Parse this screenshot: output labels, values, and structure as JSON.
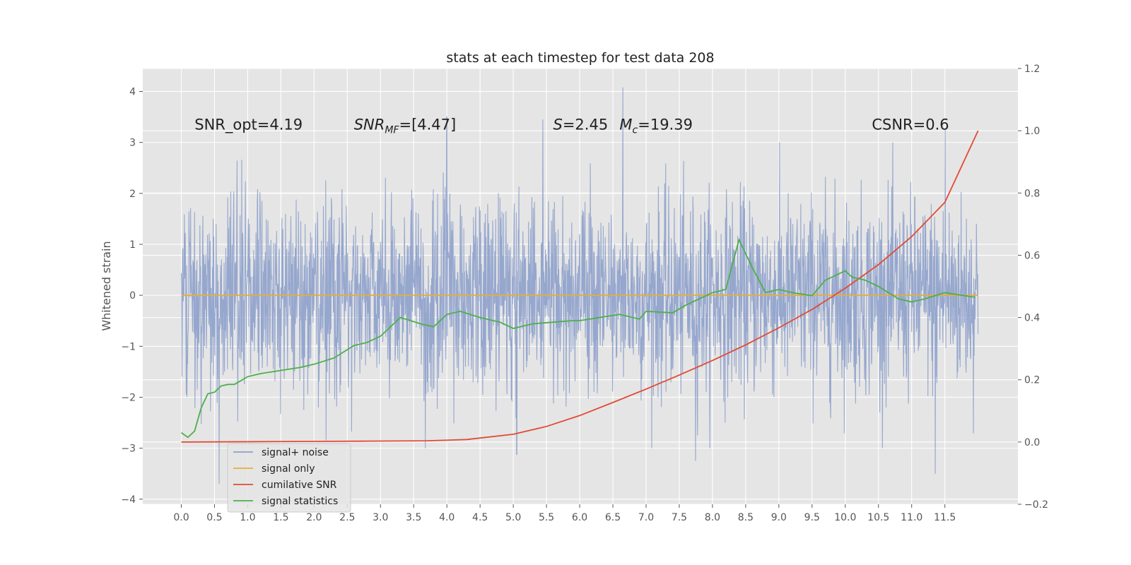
{
  "chart_data": {
    "type": "line",
    "title": "stats at each timestep for test data 208",
    "ylabel": "Whitened strain",
    "xlabel": "",
    "xlim": [
      -0.58,
      12.6
    ],
    "ylim": [
      -4.1,
      4.45
    ],
    "y2lim": [
      -0.2,
      1.2
    ],
    "x_ticks": [
      "0.0",
      "0.5",
      "1.0",
      "1.5",
      "2.0",
      "2.5",
      "3.0",
      "3.5",
      "4.0",
      "4.5",
      "5.0",
      "5.5",
      "6.0",
      "6.5",
      "7.0",
      "7.5",
      "8.0",
      "8.5",
      "9.0",
      "9.5",
      "10.0",
      "10.5",
      "11.0",
      "11.5"
    ],
    "y_ticks": [
      "−4",
      "−3",
      "−2",
      "−1",
      "0",
      "1",
      "2",
      "3",
      "4"
    ],
    "y2_ticks": [
      "−0.2",
      "0.0",
      "0.2",
      "0.4",
      "0.6",
      "0.8",
      "1.0",
      "1.2"
    ],
    "grid": true,
    "legend_position": "bottom-left",
    "annotations": [
      {
        "text": "SNR_opt=4.19",
        "x": 0.2,
        "y": 3.25
      },
      {
        "text": "SNR_MF=[4.47]",
        "x": 2.6,
        "y": 3.25
      },
      {
        "text": "S=2.45",
        "x": 5.6,
        "y": 3.25
      },
      {
        "text": "M_c=19.39",
        "x": 6.6,
        "y": 3.25
      },
      {
        "text": "CSNR=0.6",
        "x": 10.4,
        "y": 3.25
      }
    ],
    "series": [
      {
        "name": "signal+ noise",
        "axis": "left",
        "color": "#8da0cb",
        "style": "noise",
        "x_range": [
          0.0,
          12.0
        ],
        "amplitude_std": 0.95,
        "peaks": [
          {
            "x": 6.65,
            "y": 4.08
          },
          {
            "x": 4.0,
            "y": 3.5
          },
          {
            "x": 5.45,
            "y": 3.45
          },
          {
            "x": 11.5,
            "y": 3.25
          },
          {
            "x": 6.0,
            "y": 1.2
          },
          {
            "x": 11.35,
            "y": -3.5
          },
          {
            "x": 0.57,
            "y": -3.7
          },
          {
            "x": 5.05,
            "y": -3.12
          },
          {
            "x": 7.75,
            "y": -3.25
          }
        ]
      },
      {
        "name": "signal only",
        "axis": "left",
        "color": "#e5ae38",
        "x": [
          0.0,
          12.0
        ],
        "y": [
          0.0,
          0.0
        ]
      },
      {
        "name": "cumilative SNR",
        "axis": "right",
        "color": "#e24a33",
        "x": [
          0.0,
          1.0,
          2.0,
          3.0,
          3.7,
          4.3,
          5.0,
          5.5,
          6.0,
          6.5,
          7.0,
          7.5,
          8.0,
          8.5,
          9.0,
          9.5,
          10.0,
          10.5,
          11.0,
          11.5,
          12.0
        ],
        "y": [
          0.0,
          0.001,
          0.002,
          0.003,
          0.004,
          0.008,
          0.025,
          0.05,
          0.085,
          0.127,
          0.17,
          0.215,
          0.262,
          0.312,
          0.367,
          0.426,
          0.494,
          0.57,
          0.66,
          0.77,
          1.0
        ]
      },
      {
        "name": "signal statistics",
        "axis": "right",
        "color": "#4daf4a",
        "x": [
          0.0,
          0.1,
          0.2,
          0.3,
          0.4,
          0.5,
          0.6,
          0.7,
          0.8,
          1.0,
          1.2,
          1.5,
          1.8,
          2.0,
          2.3,
          2.6,
          2.8,
          3.0,
          3.3,
          3.6,
          3.8,
          4.0,
          4.2,
          4.5,
          4.8,
          5.0,
          5.3,
          5.6,
          5.9,
          6.0,
          6.3,
          6.6,
          6.9,
          7.0,
          7.4,
          7.6,
          7.8,
          8.0,
          8.2,
          8.4,
          8.6,
          8.8,
          9.0,
          9.2,
          9.5,
          9.7,
          10.0,
          10.1,
          10.3,
          10.5,
          10.8,
          11.0,
          11.2,
          11.5,
          11.8,
          11.95
        ],
        "y": [
          0.03,
          0.015,
          0.035,
          0.11,
          0.155,
          0.16,
          0.18,
          0.185,
          0.185,
          0.21,
          0.22,
          0.23,
          0.24,
          0.25,
          0.27,
          0.31,
          0.32,
          0.34,
          0.4,
          0.38,
          0.37,
          0.41,
          0.42,
          0.4,
          0.385,
          0.365,
          0.38,
          0.385,
          0.39,
          0.39,
          0.4,
          0.41,
          0.395,
          0.42,
          0.415,
          0.44,
          0.46,
          0.48,
          0.49,
          0.65,
          0.56,
          0.48,
          0.49,
          0.48,
          0.47,
          0.52,
          0.55,
          0.53,
          0.52,
          0.5,
          0.46,
          0.45,
          0.46,
          0.48,
          0.47,
          0.465
        ]
      }
    ]
  }
}
